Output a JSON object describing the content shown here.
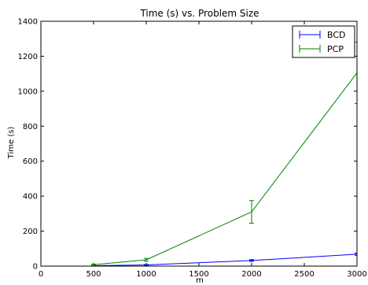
{
  "chart_data": {
    "type": "line",
    "title": "Time (s) vs. Problem Size",
    "xlabel": "m",
    "ylabel": "Time (s)",
    "xlim": [
      0,
      3000
    ],
    "ylim": [
      0,
      1400
    ],
    "xticks": [
      0,
      500,
      1000,
      1500,
      2000,
      2500,
      3000
    ],
    "yticks": [
      0,
      200,
      400,
      600,
      800,
      1000,
      1200,
      1400
    ],
    "grid": false,
    "legend_position": "top-right",
    "series": [
      {
        "name": "BCD",
        "color": "#0000ff",
        "x": [
          500,
          1000,
          2000,
          3000
        ],
        "y": [
          2,
          7,
          32,
          68
        ],
        "err": [
          1,
          2,
          5,
          6
        ]
      },
      {
        "name": "PCP",
        "color": "#008000",
        "x": [
          500,
          1000,
          2000,
          3000
        ],
        "y": [
          8,
          36,
          310,
          1105
        ],
        "err": [
          3,
          8,
          65,
          175
        ]
      }
    ]
  }
}
